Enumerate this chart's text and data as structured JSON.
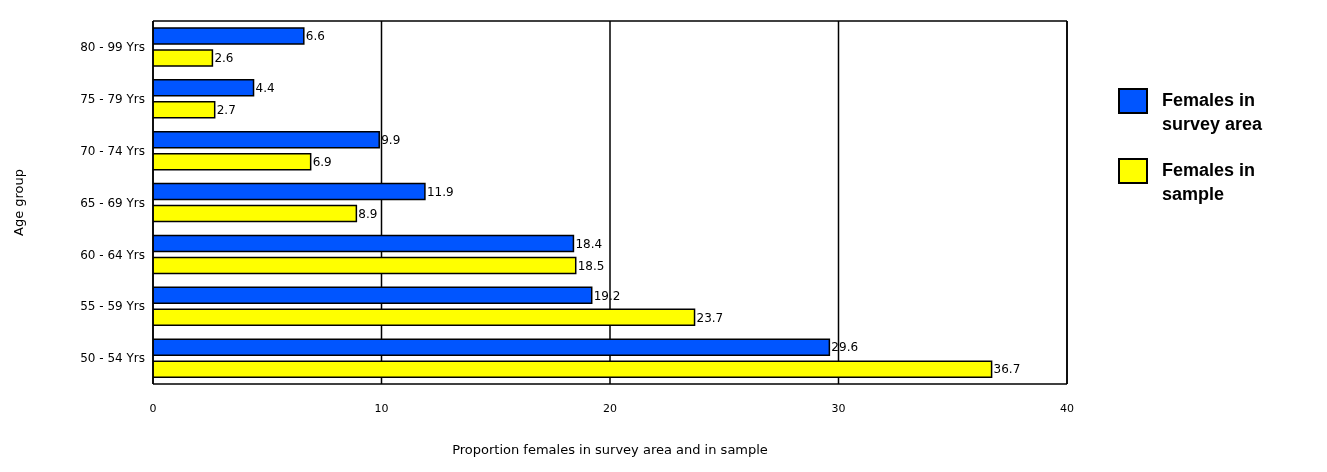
{
  "chart_data": {
    "type": "bar",
    "orientation": "horizontal",
    "xlabel": "Proportion females in survey area and in sample",
    "ylabel": "Age group",
    "categories": [
      "80 - 99 Yrs",
      "75 - 79 Yrs",
      "70 - 74 Yrs",
      "65 - 69 Yrs",
      "60 - 64 Yrs",
      "55 - 59 Yrs",
      "50 - 54 Yrs"
    ],
    "series": [
      {
        "name": "Females in survey area",
        "color": "#0055ff",
        "values": [
          6.6,
          4.4,
          9.9,
          11.9,
          18.4,
          19.2,
          29.6
        ]
      },
      {
        "name": "Females in sample",
        "color": "#ffff00",
        "values": [
          2.6,
          2.7,
          6.9,
          8.9,
          18.5,
          23.7,
          36.7
        ]
      }
    ],
    "xlim": [
      0,
      40
    ],
    "xticks": [
      0,
      10,
      20,
      30,
      40
    ],
    "grid": "x",
    "legend": "right",
    "data_labels": true
  }
}
